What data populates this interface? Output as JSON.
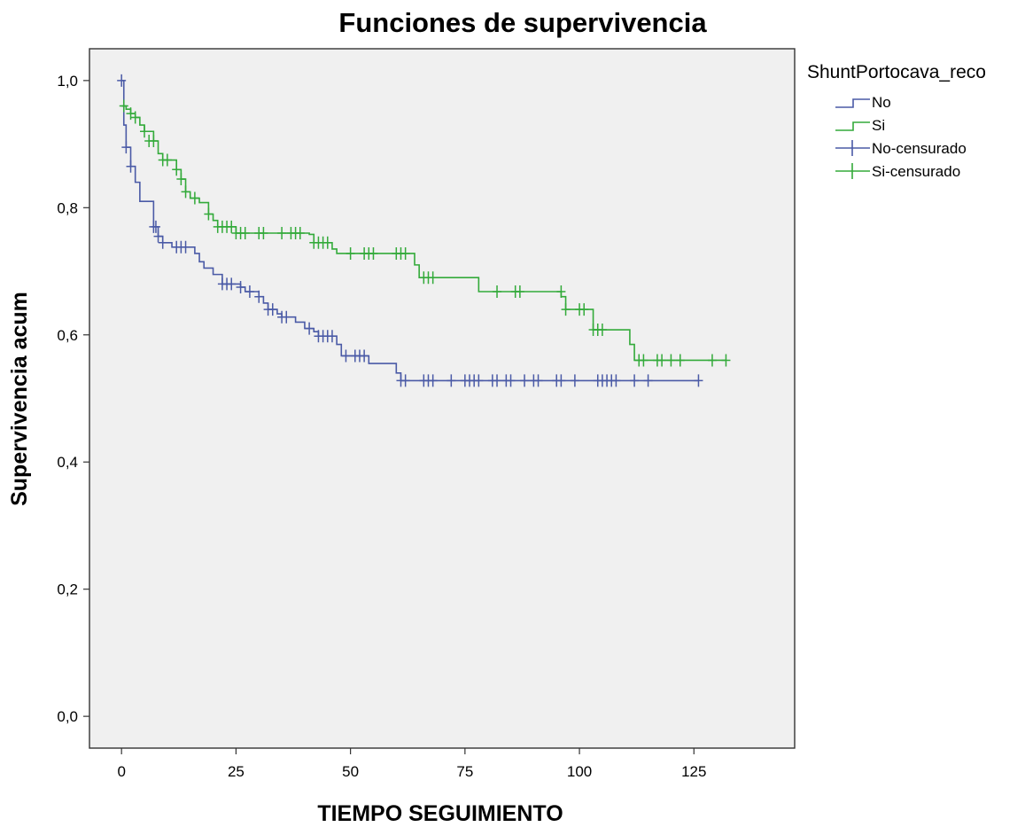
{
  "chart_data": {
    "type": "line",
    "title": "Funciones de supervivencia",
    "xlabel": "TIEMPO SEGUIMIENTO",
    "ylabel": "Supervivencia acum",
    "xlim": [
      -7,
      147
    ],
    "ylim": [
      -0.05,
      1.05
    ],
    "x_ticks": [
      0,
      25,
      50,
      75,
      100,
      125
    ],
    "y_ticks": [
      0.0,
      0.2,
      0.4,
      0.6,
      0.8,
      1.0
    ],
    "x_tick_labels": [
      "0",
      "25",
      "50",
      "75",
      "100",
      "125"
    ],
    "y_tick_labels": [
      "0,0",
      "0,2",
      "0,4",
      "0,6",
      "0,8",
      "1,0"
    ],
    "grid": false,
    "legend": {
      "title": "ShuntPortocava_reco",
      "position": "right",
      "entries": [
        "No",
        "Si",
        "No-censurado",
        "Si-censurado"
      ]
    },
    "series": [
      {
        "name": "No",
        "color": "#4a5aa6",
        "steps": [
          [
            0,
            1.0
          ],
          [
            0.5,
            0.93
          ],
          [
            1,
            0.895
          ],
          [
            2,
            0.865
          ],
          [
            3,
            0.84
          ],
          [
            4,
            0.81
          ],
          [
            7,
            0.77
          ],
          [
            8,
            0.755
          ],
          [
            9,
            0.745
          ],
          [
            11,
            0.738
          ],
          [
            16,
            0.728
          ],
          [
            17,
            0.715
          ],
          [
            18,
            0.705
          ],
          [
            20,
            0.695
          ],
          [
            22,
            0.68
          ],
          [
            26,
            0.675
          ],
          [
            27,
            0.668
          ],
          [
            30,
            0.66
          ],
          [
            31,
            0.65
          ],
          [
            32,
            0.64
          ],
          [
            34,
            0.633
          ],
          [
            35,
            0.628
          ],
          [
            38,
            0.62
          ],
          [
            40,
            0.61
          ],
          [
            42,
            0.605
          ],
          [
            43,
            0.598
          ],
          [
            47,
            0.585
          ],
          [
            48,
            0.567
          ],
          [
            54,
            0.555
          ],
          [
            60,
            0.54
          ],
          [
            61,
            0.528
          ],
          [
            126,
            0.528
          ]
        ],
        "censored": [
          [
            0,
            1.0
          ],
          [
            1,
            0.895
          ],
          [
            2,
            0.865
          ],
          [
            7,
            0.77
          ],
          [
            7.5,
            0.77
          ],
          [
            8,
            0.755
          ],
          [
            9,
            0.745
          ],
          [
            12,
            0.738
          ],
          [
            13,
            0.738
          ],
          [
            14,
            0.738
          ],
          [
            22,
            0.68
          ],
          [
            23,
            0.68
          ],
          [
            24,
            0.68
          ],
          [
            26,
            0.675
          ],
          [
            28,
            0.668
          ],
          [
            30,
            0.66
          ],
          [
            32,
            0.64
          ],
          [
            33,
            0.64
          ],
          [
            35,
            0.628
          ],
          [
            36,
            0.628
          ],
          [
            41,
            0.61
          ],
          [
            43,
            0.598
          ],
          [
            44,
            0.598
          ],
          [
            45,
            0.598
          ],
          [
            46,
            0.598
          ],
          [
            49,
            0.567
          ],
          [
            51,
            0.567
          ],
          [
            52,
            0.567
          ],
          [
            53,
            0.567
          ],
          [
            61,
            0.528
          ],
          [
            62,
            0.528
          ],
          [
            66,
            0.528
          ],
          [
            67,
            0.528
          ],
          [
            68,
            0.528
          ],
          [
            72,
            0.528
          ],
          [
            75,
            0.528
          ],
          [
            76,
            0.528
          ],
          [
            77,
            0.528
          ],
          [
            78,
            0.528
          ],
          [
            81,
            0.528
          ],
          [
            82,
            0.528
          ],
          [
            84,
            0.528
          ],
          [
            85,
            0.528
          ],
          [
            88,
            0.528
          ],
          [
            90,
            0.528
          ],
          [
            91,
            0.528
          ],
          [
            95,
            0.528
          ],
          [
            96,
            0.528
          ],
          [
            99,
            0.528
          ],
          [
            104,
            0.528
          ],
          [
            105,
            0.528
          ],
          [
            106,
            0.528
          ],
          [
            107,
            0.528
          ],
          [
            108,
            0.528
          ],
          [
            112,
            0.528
          ],
          [
            115,
            0.528
          ],
          [
            126,
            0.528
          ]
        ]
      },
      {
        "name": "Si",
        "color": "#33aa3a",
        "steps": [
          [
            0,
            0.96
          ],
          [
            1,
            0.955
          ],
          [
            2,
            0.948
          ],
          [
            3,
            0.942
          ],
          [
            4,
            0.93
          ],
          [
            5,
            0.92
          ],
          [
            7,
            0.905
          ],
          [
            8,
            0.885
          ],
          [
            9,
            0.875
          ],
          [
            12,
            0.86
          ],
          [
            13,
            0.845
          ],
          [
            14,
            0.825
          ],
          [
            15,
            0.815
          ],
          [
            17,
            0.808
          ],
          [
            19,
            0.79
          ],
          [
            20,
            0.78
          ],
          [
            21,
            0.77
          ],
          [
            25,
            0.76
          ],
          [
            41,
            0.758
          ],
          [
            42,
            0.745
          ],
          [
            46,
            0.735
          ],
          [
            47,
            0.728
          ],
          [
            64,
            0.71
          ],
          [
            65,
            0.69
          ],
          [
            78,
            0.668
          ],
          [
            96,
            0.66
          ],
          [
            97,
            0.64
          ],
          [
            103,
            0.608
          ],
          [
            110,
            0.608
          ],
          [
            111,
            0.585
          ],
          [
            112,
            0.56
          ],
          [
            132,
            0.56
          ]
        ],
        "censored": [
          [
            0.5,
            0.96
          ],
          [
            2,
            0.948
          ],
          [
            3,
            0.942
          ],
          [
            5,
            0.92
          ],
          [
            6,
            0.905
          ],
          [
            7,
            0.905
          ],
          [
            9,
            0.875
          ],
          [
            10,
            0.875
          ],
          [
            12,
            0.86
          ],
          [
            13,
            0.845
          ],
          [
            14,
            0.825
          ],
          [
            16,
            0.815
          ],
          [
            19,
            0.79
          ],
          [
            21,
            0.77
          ],
          [
            22,
            0.77
          ],
          [
            23,
            0.77
          ],
          [
            24,
            0.77
          ],
          [
            25,
            0.76
          ],
          [
            26,
            0.76
          ],
          [
            27,
            0.76
          ],
          [
            30,
            0.76
          ],
          [
            31,
            0.76
          ],
          [
            35,
            0.76
          ],
          [
            37,
            0.76
          ],
          [
            38,
            0.76
          ],
          [
            39,
            0.76
          ],
          [
            42,
            0.745
          ],
          [
            43,
            0.745
          ],
          [
            44,
            0.745
          ],
          [
            45,
            0.745
          ],
          [
            50,
            0.728
          ],
          [
            53,
            0.728
          ],
          [
            54,
            0.728
          ],
          [
            55,
            0.728
          ],
          [
            60,
            0.728
          ],
          [
            61,
            0.728
          ],
          [
            62,
            0.728
          ],
          [
            66,
            0.69
          ],
          [
            67,
            0.69
          ],
          [
            68,
            0.69
          ],
          [
            82,
            0.668
          ],
          [
            86,
            0.668
          ],
          [
            87,
            0.668
          ],
          [
            96,
            0.668
          ],
          [
            97,
            0.64
          ],
          [
            100,
            0.64
          ],
          [
            101,
            0.64
          ],
          [
            103,
            0.608
          ],
          [
            104,
            0.608
          ],
          [
            105,
            0.608
          ],
          [
            113,
            0.56
          ],
          [
            114,
            0.56
          ],
          [
            117,
            0.56
          ],
          [
            118,
            0.56
          ],
          [
            120,
            0.56
          ],
          [
            122,
            0.56
          ],
          [
            129,
            0.56
          ],
          [
            132,
            0.56
          ]
        ]
      }
    ]
  }
}
